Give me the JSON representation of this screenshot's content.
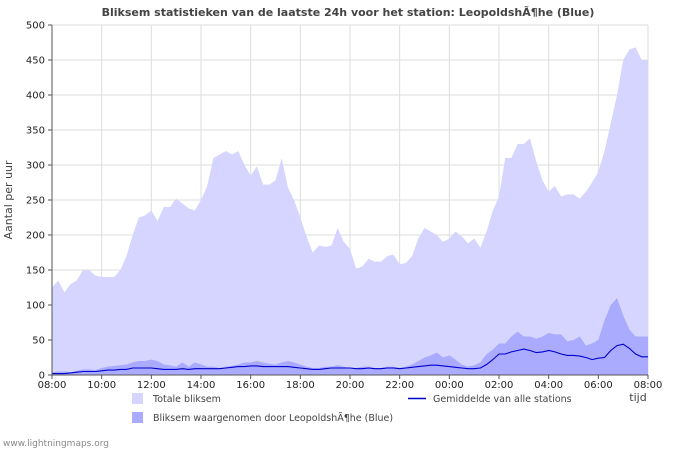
{
  "chart_data": {
    "type": "area",
    "title": "Bliksem statistieken van de laatste 24h voor het station: LeopoldshÃ¶he (Blue)",
    "xlabel": "tijd",
    "ylabel": "Aantal per uur",
    "ylim": [
      0,
      500
    ],
    "yticks": [
      0,
      50,
      100,
      150,
      200,
      250,
      300,
      350,
      400,
      450,
      500
    ],
    "xlim": [
      0,
      24
    ],
    "xtick_values": [
      0,
      2,
      4,
      6,
      8,
      10,
      12,
      14,
      16,
      18,
      20,
      22,
      24
    ],
    "xtick_labels": [
      "08:00",
      "10:00",
      "12:00",
      "14:00",
      "16:00",
      "18:00",
      "20:00",
      "22:00",
      "00:00",
      "02:00",
      "04:00",
      "06:00",
      "08:00"
    ],
    "grid": true,
    "series": [
      {
        "name": "Totale bliksem",
        "kind": "area",
        "color": "#d5d5ff",
        "x": [
          0,
          0.25,
          0.5,
          0.75,
          1,
          1.25,
          1.5,
          1.75,
          2,
          2.25,
          2.5,
          2.75,
          3,
          3.25,
          3.5,
          3.75,
          4,
          4.25,
          4.5,
          4.75,
          5,
          5.25,
          5.5,
          5.75,
          6,
          6.25,
          6.5,
          6.75,
          7,
          7.25,
          7.5,
          7.75,
          8,
          8.25,
          8.5,
          8.75,
          9,
          9.25,
          9.5,
          9.75,
          10,
          10.25,
          10.5,
          10.75,
          11,
          11.25,
          11.5,
          11.75,
          12,
          12.25,
          12.5,
          12.75,
          13,
          13.25,
          13.5,
          13.75,
          14,
          14.25,
          14.5,
          14.75,
          15,
          15.25,
          15.5,
          15.75,
          16,
          16.25,
          16.5,
          16.75,
          17,
          17.25,
          17.5,
          17.75,
          18,
          18.25,
          18.5,
          18.75,
          19,
          19.25,
          19.5,
          19.75,
          20,
          20.25,
          20.5,
          20.75,
          21,
          21.25,
          21.5,
          21.75,
          22,
          22.25,
          22.5,
          22.75,
          23,
          23.25,
          23.5,
          23.75,
          24
        ],
        "values": [
          125,
          135,
          118,
          130,
          135,
          150,
          150,
          142,
          140,
          140,
          140,
          150,
          170,
          200,
          225,
          228,
          235,
          220,
          240,
          240,
          252,
          245,
          238,
          235,
          250,
          270,
          310,
          315,
          320,
          315,
          320,
          300,
          285,
          298,
          272,
          272,
          278,
          310,
          268,
          250,
          225,
          198,
          175,
          185,
          183,
          185,
          210,
          190,
          180,
          152,
          155,
          166,
          162,
          162,
          170,
          172,
          158,
          160,
          170,
          195,
          210,
          205,
          200,
          190,
          195,
          205,
          198,
          188,
          195,
          182,
          205,
          235,
          255,
          310,
          310,
          330,
          330,
          338,
          305,
          278,
          262,
          270,
          255,
          258,
          258,
          252,
          262,
          275,
          290,
          320,
          360,
          400,
          450,
          465,
          468,
          450,
          450
        ]
      },
      {
        "name": "Bliksem waargenomen door LeopoldshÃ¶he (Blue)",
        "kind": "area",
        "color": "#aaaaff",
        "x": [
          0,
          0.25,
          0.5,
          0.75,
          1,
          1.25,
          1.5,
          1.75,
          2,
          2.25,
          2.5,
          2.75,
          3,
          3.25,
          3.5,
          3.75,
          4,
          4.25,
          4.5,
          4.75,
          5,
          5.25,
          5.5,
          5.75,
          6,
          6.25,
          6.5,
          6.75,
          7,
          7.25,
          7.5,
          7.75,
          8,
          8.25,
          8.5,
          8.75,
          9,
          9.25,
          9.5,
          9.75,
          10,
          10.25,
          10.5,
          10.75,
          11,
          11.25,
          11.5,
          11.75,
          12,
          12.25,
          12.5,
          12.75,
          13,
          13.25,
          13.5,
          13.75,
          14,
          14.25,
          14.5,
          14.75,
          15,
          15.25,
          15.5,
          15.75,
          16,
          16.25,
          16.5,
          16.75,
          17,
          17.25,
          17.5,
          17.75,
          18,
          18.25,
          18.5,
          18.75,
          19,
          19.25,
          19.5,
          19.75,
          20,
          20.25,
          20.5,
          20.75,
          21,
          21.25,
          21.5,
          21.75,
          22,
          22.25,
          22.5,
          22.75,
          23,
          23.25,
          23.5,
          23.75,
          24
        ],
        "values": [
          4,
          5,
          5,
          4,
          6,
          8,
          8,
          7,
          10,
          12,
          13,
          14,
          15,
          18,
          20,
          20,
          22,
          20,
          15,
          14,
          12,
          18,
          12,
          18,
          15,
          12,
          12,
          10,
          12,
          13,
          15,
          18,
          18,
          20,
          18,
          16,
          15,
          18,
          20,
          18,
          15,
          12,
          10,
          10,
          12,
          12,
          14,
          12,
          10,
          10,
          12,
          12,
          10,
          10,
          12,
          12,
          10,
          12,
          15,
          20,
          25,
          28,
          32,
          25,
          28,
          22,
          15,
          12,
          14,
          18,
          30,
          36,
          45,
          45,
          55,
          62,
          55,
          55,
          52,
          55,
          60,
          58,
          58,
          48,
          50,
          55,
          42,
          45,
          50,
          78,
          100,
          110,
          85,
          65,
          55,
          55,
          55
        ]
      },
      {
        "name": "Gemiddelde van alle stations",
        "kind": "line",
        "color": "#0000cc",
        "x": [
          0,
          0.25,
          0.5,
          0.75,
          1,
          1.25,
          1.5,
          1.75,
          2,
          2.25,
          2.5,
          2.75,
          3,
          3.25,
          3.5,
          3.75,
          4,
          4.25,
          4.5,
          4.75,
          5,
          5.25,
          5.5,
          5.75,
          6,
          6.25,
          6.5,
          6.75,
          7,
          7.25,
          7.5,
          7.75,
          8,
          8.25,
          8.5,
          8.75,
          9,
          9.25,
          9.5,
          9.75,
          10,
          10.25,
          10.5,
          10.75,
          11,
          11.25,
          11.5,
          11.75,
          12,
          12.25,
          12.5,
          12.75,
          13,
          13.25,
          13.5,
          13.75,
          14,
          14.25,
          14.5,
          14.75,
          15,
          15.25,
          15.5,
          15.75,
          16,
          16.25,
          16.5,
          16.75,
          17,
          17.25,
          17.5,
          17.75,
          18,
          18.25,
          18.5,
          18.75,
          19,
          19.25,
          19.5,
          19.75,
          20,
          20.25,
          20.5,
          20.75,
          21,
          21.25,
          21.5,
          21.75,
          22,
          22.25,
          22.5,
          22.75,
          23,
          23.25,
          23.5,
          23.75,
          24
        ],
        "values": [
          2,
          2,
          2,
          3,
          4,
          5,
          5,
          5,
          6,
          7,
          7,
          8,
          8,
          10,
          10,
          10,
          10,
          9,
          8,
          8,
          8,
          9,
          8,
          9,
          9,
          9,
          9,
          9,
          10,
          11,
          12,
          12,
          13,
          13,
          12,
          12,
          12,
          12,
          12,
          11,
          10,
          9,
          8,
          8,
          9,
          10,
          10,
          10,
          10,
          9,
          9,
          10,
          9,
          9,
          10,
          10,
          9,
          10,
          11,
          12,
          13,
          14,
          14,
          13,
          12,
          11,
          10,
          9,
          9,
          10,
          15,
          22,
          30,
          30,
          33,
          35,
          37,
          35,
          32,
          33,
          35,
          33,
          30,
          28,
          28,
          27,
          25,
          22,
          24,
          25,
          35,
          42,
          44,
          38,
          30,
          26,
          26
        ]
      }
    ],
    "legend": {
      "placement": "bottom",
      "items": [
        {
          "label": "Totale bliksem",
          "symbol": "area",
          "color": "#d5d5ff"
        },
        {
          "label": "Gemiddelde van alle stations",
          "symbol": "line",
          "color": "#0000cc"
        },
        {
          "label": "Bliksem waargenomen door LeopoldshÃ¶he (Blue)",
          "symbol": "area",
          "color": "#aaaaff"
        }
      ]
    }
  },
  "footer": {
    "text": "www.lightningmaps.org"
  }
}
